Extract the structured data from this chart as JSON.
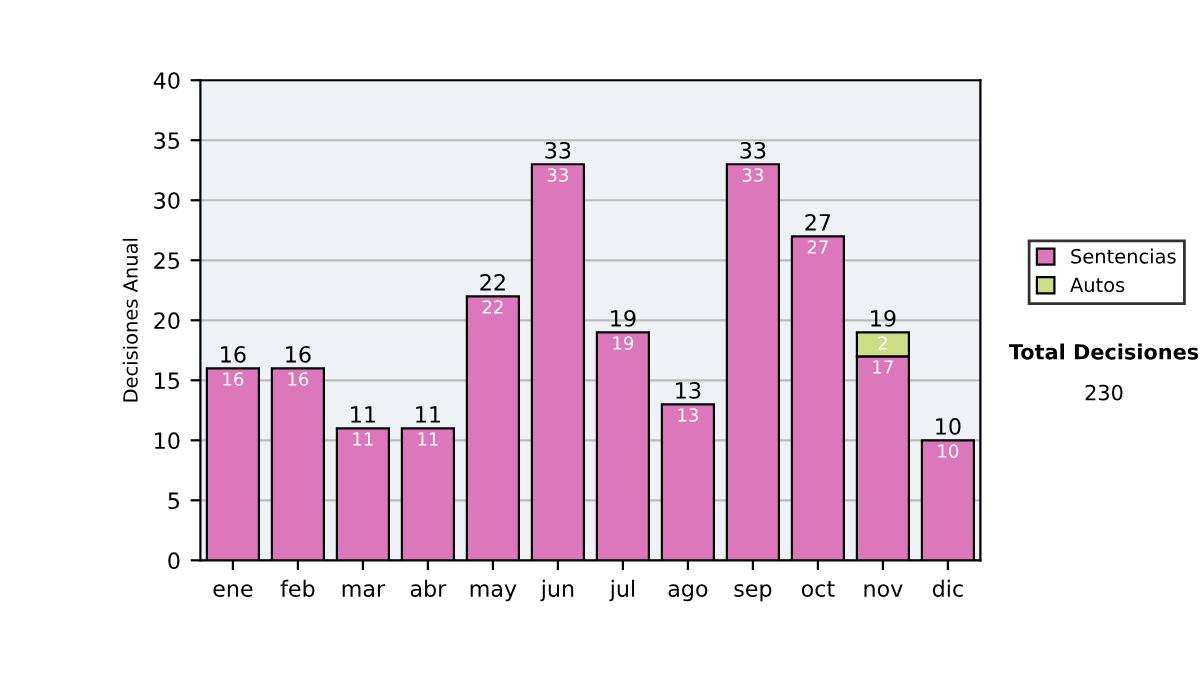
{
  "chart_data": {
    "type": "bar",
    "stacked": true,
    "ylabel": "Decisiones Anual",
    "categories": [
      "ene",
      "feb",
      "mar",
      "abr",
      "may",
      "jun",
      "jul",
      "ago",
      "sep",
      "oct",
      "nov",
      "dic"
    ],
    "series": [
      {
        "name": "Sentencias",
        "color": "#dd77bb",
        "values": [
          16,
          16,
          11,
          11,
          22,
          33,
          19,
          13,
          33,
          27,
          17,
          10
        ],
        "value_labels": [
          "16",
          "16",
          "11",
          "11",
          "22",
          "33",
          "19",
          "13",
          "33",
          "27",
          "17",
          "10"
        ]
      },
      {
        "name": "Autos",
        "color": "#ccdd88",
        "values": [
          null,
          null,
          null,
          null,
          null,
          null,
          null,
          null,
          null,
          null,
          2,
          null
        ],
        "value_labels": [
          null,
          null,
          null,
          null,
          null,
          null,
          null,
          null,
          null,
          null,
          "2",
          null
        ]
      }
    ],
    "totals": [
      "16",
      "16",
      "11",
      "11",
      "22",
      "33",
      "19",
      "13",
      "33",
      "27",
      "19",
      "10"
    ],
    "ylim": [
      0,
      40
    ],
    "yticks": [
      0,
      5,
      10,
      15,
      20,
      25,
      30,
      35,
      40
    ],
    "grid": "y",
    "legend": "right",
    "annotations": [
      "Total Decisiones",
      "230"
    ]
  }
}
